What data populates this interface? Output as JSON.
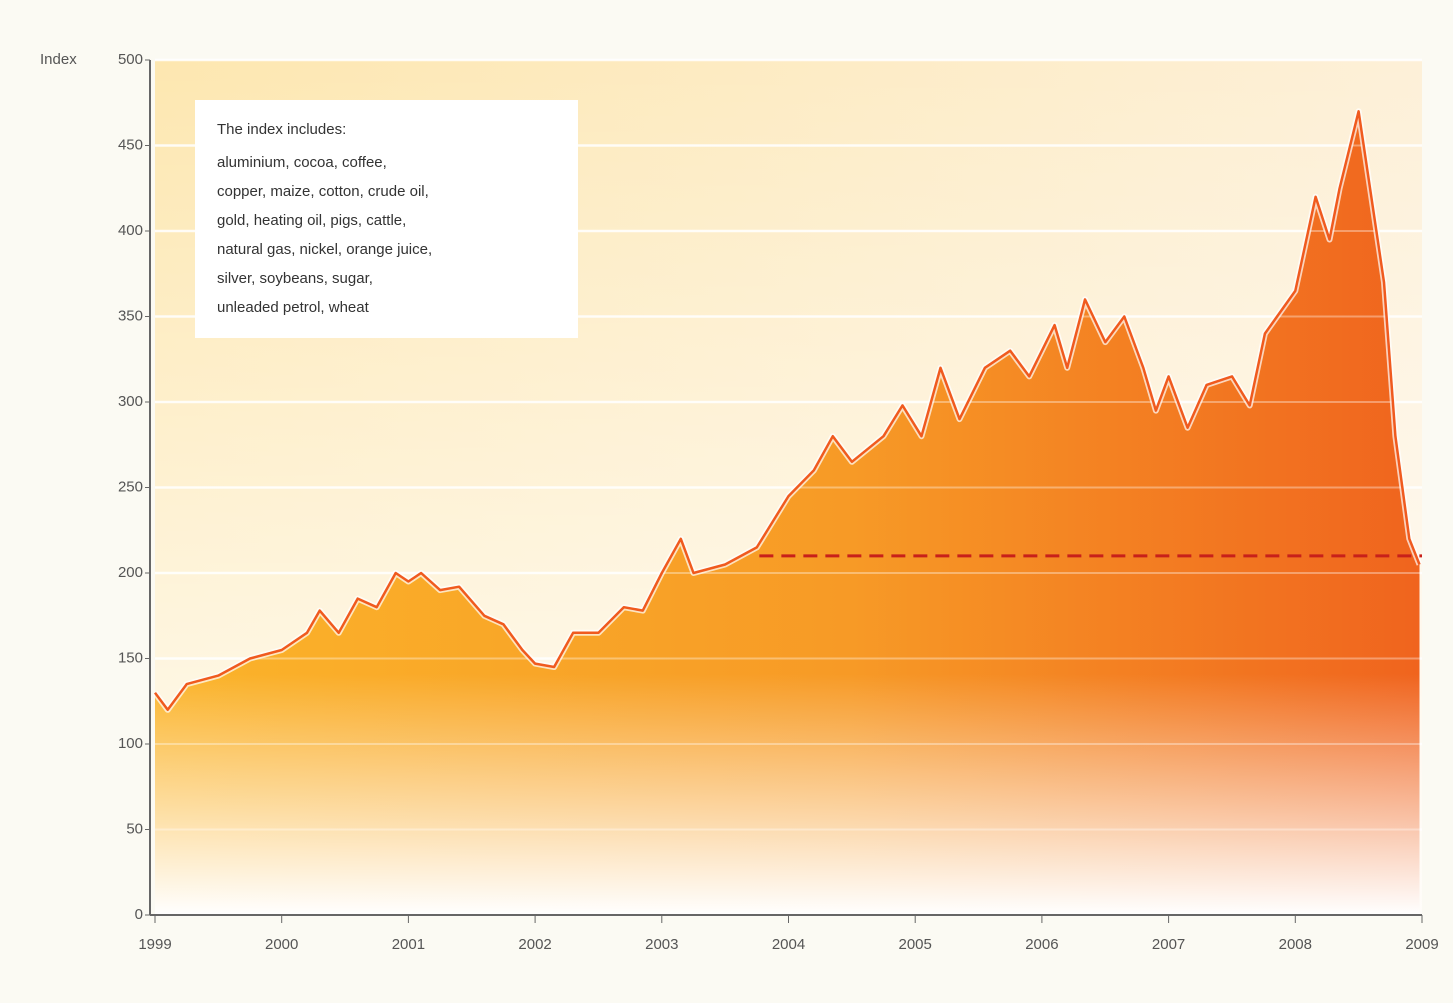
{
  "chart_data": {
    "type": "area",
    "y_axis_label": "Index",
    "note": {
      "title": "The index includes:",
      "lines": [
        "aluminium, cocoa, coffee,",
        "copper, maize, cotton, crude oil,",
        "gold, heating oil, pigs, cattle,",
        "natural gas, nickel, orange juice,",
        "silver, soybeans, sugar,",
        "unleaded petrol, wheat"
      ]
    },
    "x": [
      1999.0,
      1999.1,
      1999.25,
      1999.5,
      1999.75,
      2000.0,
      2000.2,
      2000.3,
      2000.45,
      2000.6,
      2000.75,
      2000.9,
      2001.0,
      2001.1,
      2001.25,
      2001.4,
      2001.6,
      2001.75,
      2001.9,
      2002.0,
      2002.15,
      2002.3,
      2002.5,
      2002.7,
      2002.85,
      2003.0,
      2003.15,
      2003.25,
      2003.5,
      2003.75,
      2004.0,
      2004.2,
      2004.35,
      2004.5,
      2004.75,
      2004.9,
      2005.05,
      2005.2,
      2005.35,
      2005.55,
      2005.75,
      2005.9,
      2006.1,
      2006.2,
      2006.34,
      2006.5,
      2006.65,
      2006.8,
      2006.9,
      2007.0,
      2007.15,
      2007.3,
      2007.5,
      2007.64,
      2007.76,
      2008.0,
      2008.16,
      2008.27,
      2008.35,
      2008.5,
      2008.6,
      2008.7,
      2008.79,
      2008.9,
      2008.98
    ],
    "values": [
      130,
      120,
      135,
      140,
      150,
      155,
      165,
      178,
      165,
      185,
      180,
      200,
      195,
      200,
      190,
      192,
      175,
      170,
      155,
      147,
      145,
      165,
      165,
      180,
      178,
      200,
      220,
      200,
      205,
      215,
      245,
      260,
      280,
      265,
      280,
      298,
      280,
      320,
      290,
      320,
      330,
      315,
      345,
      320,
      360,
      335,
      350,
      320,
      295,
      315,
      285,
      310,
      315,
      298,
      340,
      365,
      420,
      395,
      425,
      470,
      420,
      370,
      280,
      220,
      205
    ],
    "color": "#f05a1e",
    "reference_line": {
      "value": 210,
      "x_start": 2003.77,
      "x_end": 2009,
      "color": "#c8201a"
    },
    "xlim": [
      1999,
      2009
    ],
    "xticks": [
      1999,
      2000,
      2001,
      2002,
      2003,
      2004,
      2005,
      2006,
      2007,
      2008,
      2009
    ],
    "ylim": [
      0,
      500
    ],
    "yticks": [
      0,
      50,
      100,
      150,
      200,
      250,
      300,
      350,
      400,
      450,
      500
    ],
    "grid": true
  }
}
